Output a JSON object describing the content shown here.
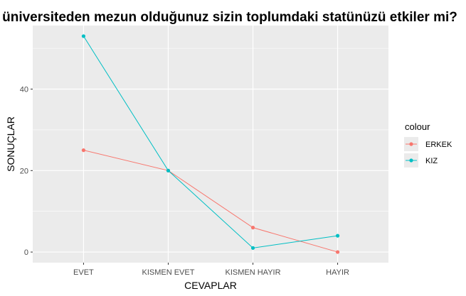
{
  "chart_data": {
    "type": "line",
    "title": "üniversiteden mezun olduğunuz sizin toplumdaki statünüzü etkiler mi?",
    "xlabel": "CEVAPLAR",
    "ylabel": "SONUÇLAR",
    "categories": [
      "EVET",
      "KISMEN EVET",
      "KISMEN HAYIR",
      "HAYIR"
    ],
    "yticks": [
      0,
      20,
      40
    ],
    "ylim": [
      -2.6,
      55.6
    ],
    "grid": true,
    "legend": {
      "title": "colour",
      "placement": "right"
    },
    "series": [
      {
        "name": "ERKEK",
        "color": "#F8766D",
        "values": [
          25,
          20,
          6,
          0
        ]
      },
      {
        "name": "KIZ",
        "color": "#00BFC4",
        "values": [
          53,
          20,
          1,
          4
        ]
      }
    ]
  },
  "colors": {
    "panel_background": "#EBEBEB",
    "grid": "#FFFFFF",
    "tick": "#333333"
  }
}
